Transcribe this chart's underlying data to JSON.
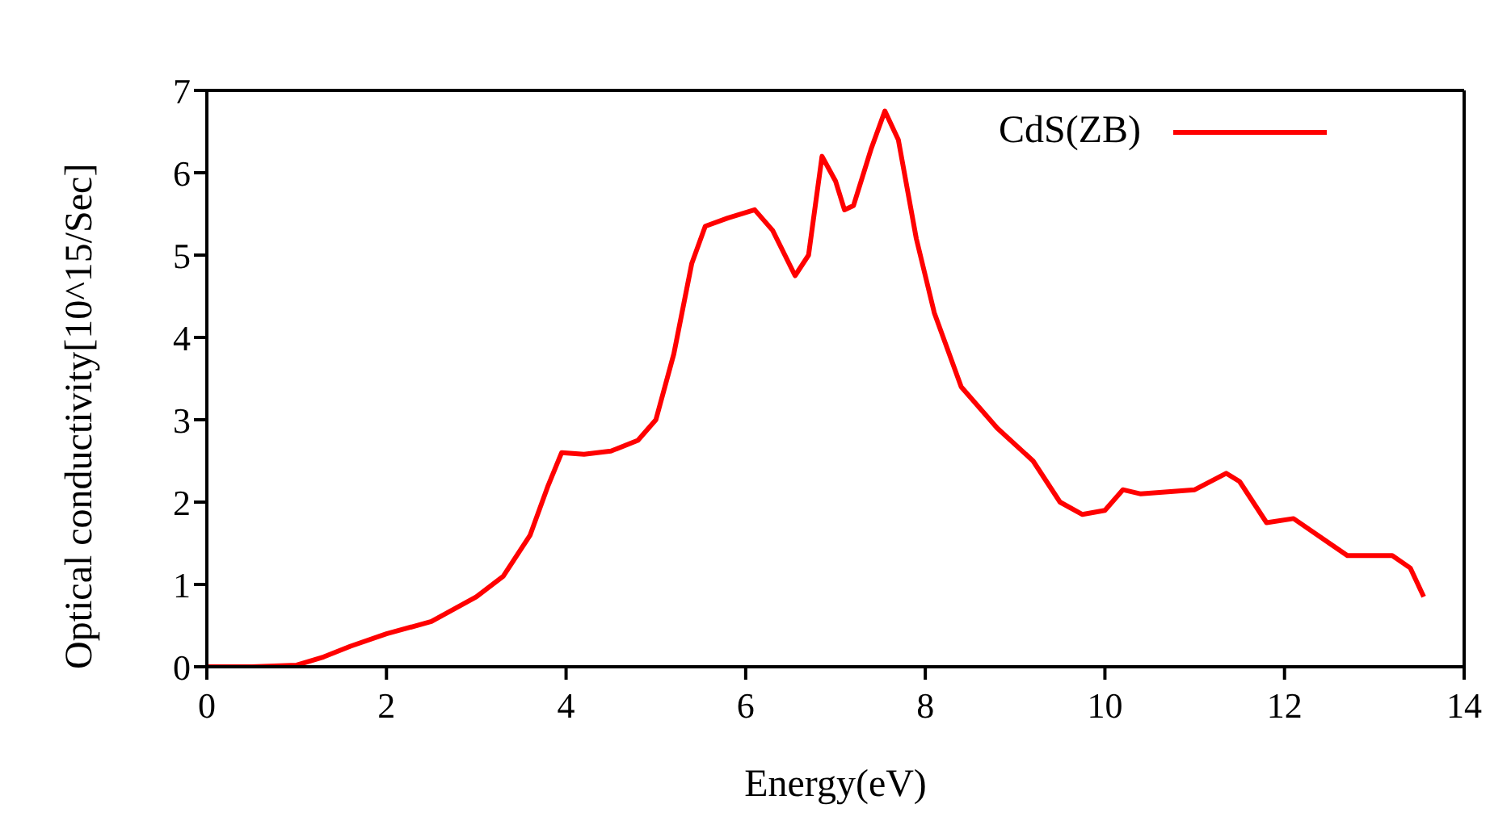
{
  "chart_data": {
    "type": "line",
    "xlabel": "Energy(eV)",
    "ylabel": "Optical conductivity[10^15/Sec]",
    "x": [
      0,
      0.5,
      1.0,
      1.3,
      1.6,
      2.0,
      2.5,
      3.0,
      3.3,
      3.6,
      3.8,
      3.95,
      4.2,
      4.5,
      4.8,
      5.0,
      5.2,
      5.4,
      5.55,
      5.8,
      6.1,
      6.3,
      6.55,
      6.7,
      6.85,
      7.0,
      7.1,
      7.2,
      7.4,
      7.55,
      7.7,
      7.9,
      8.1,
      8.4,
      8.8,
      9.2,
      9.5,
      9.75,
      10.0,
      10.2,
      10.4,
      11.0,
      11.35,
      11.5,
      11.8,
      12.1,
      12.5,
      12.7,
      13.2,
      13.4,
      13.55
    ],
    "series": [
      {
        "name": "CdS(ZB)",
        "color": "#ff0000",
        "values": [
          0,
          0,
          0.02,
          0.12,
          0.25,
          0.4,
          0.55,
          0.85,
          1.1,
          1.6,
          2.2,
          2.6,
          2.58,
          2.62,
          2.75,
          3.0,
          3.8,
          4.9,
          5.35,
          5.45,
          5.55,
          5.3,
          4.75,
          5.0,
          6.2,
          5.9,
          5.55,
          5.6,
          6.3,
          6.75,
          6.4,
          5.2,
          4.3,
          3.4,
          2.9,
          2.5,
          2.0,
          1.85,
          1.9,
          2.15,
          2.1,
          2.15,
          2.35,
          2.25,
          1.75,
          1.8,
          1.5,
          1.35,
          1.35,
          1.2,
          0.85
        ]
      }
    ],
    "xlim": [
      0,
      14
    ],
    "xticks": [
      0,
      2,
      4,
      6,
      8,
      10,
      12,
      14
    ],
    "ylim": [
      0,
      7
    ],
    "yticks": [
      0,
      1,
      2,
      3,
      4,
      5,
      6,
      7
    ],
    "grid": false,
    "legend": "top right",
    "marker": "none",
    "line_style": "solid"
  }
}
